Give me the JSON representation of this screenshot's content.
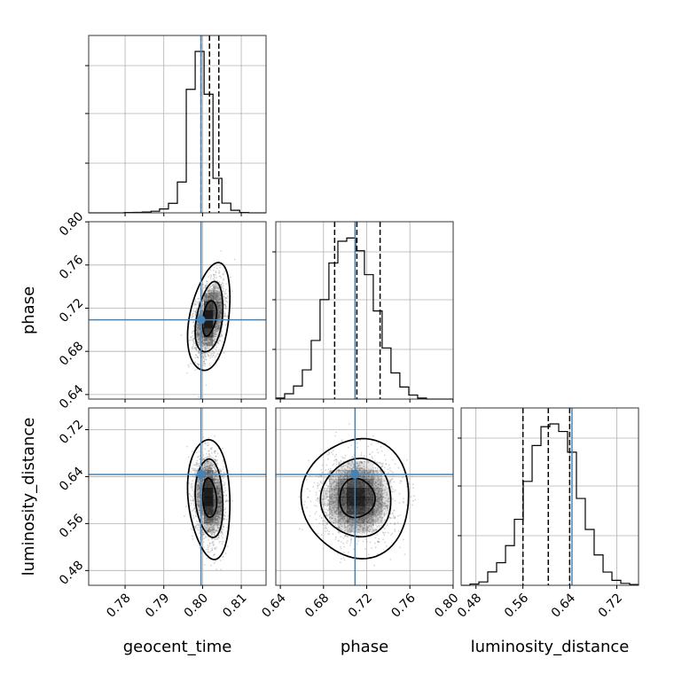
{
  "chart_data": {
    "type": "corner",
    "parameters": [
      "geocent_time",
      "phase",
      "luminosity_distance"
    ],
    "axis_labels": {
      "x": [
        "geocent_time",
        "phase",
        "luminosity_distance"
      ],
      "y": [
        "phase",
        "luminosity_distance"
      ]
    },
    "ranges": {
      "geocent_time": [
        0.7706,
        0.8164
      ],
      "phase": [
        0.6358,
        0.8001
      ],
      "luminosity_distance": [
        0.4548,
        0.757
      ]
    },
    "ticks": {
      "geocent_time": [
        0.78,
        0.79,
        0.8,
        0.81
      ],
      "phase": [
        0.64,
        0.68,
        0.72,
        0.76,
        0.8
      ],
      "luminosity_distance_x": [
        0.48,
        0.56,
        0.64,
        0.72
      ],
      "luminosity_distance_y": [
        0.48,
        0.56,
        0.64,
        0.72
      ]
    },
    "tick_labels": {
      "geocent_time": [
        "0.78",
        "0.79",
        "0.80",
        "0.81"
      ],
      "phase": [
        "0.64",
        "0.68",
        "0.72",
        "0.76",
        "0.80"
      ],
      "luminosity_distance_x": [
        "0.48",
        "0.56",
        "0.64",
        "0.72"
      ],
      "luminosity_distance_y": [
        "0.48",
        "0.56",
        "0.64",
        "0.72"
      ]
    },
    "truths": {
      "geocent_time": 0.7996,
      "phase": 0.7092,
      "luminosity_distance": 0.6436
    },
    "truth_color": "#4682b4",
    "quantiles": {
      "geocent_time": [
        0.7996,
        0.8018,
        0.8042
      ],
      "phase": [
        0.6903,
        0.7109,
        0.7324
      ],
      "luminosity_distance": [
        0.5601,
        0.6033,
        0.6397
      ]
    },
    "marginals": {
      "geocent_time": {
        "edges": [
          0.7706,
          0.7729,
          0.7752,
          0.7775,
          0.7798,
          0.7821,
          0.7844,
          0.7867,
          0.7889,
          0.7912,
          0.7935,
          0.7958,
          0.7981,
          0.8004,
          0.8027,
          0.805,
          0.8073,
          0.8096,
          0.8119,
          0.8141,
          0.8164
        ],
        "counts": [
          0,
          0,
          0,
          0,
          0.002,
          0.003,
          0.005,
          0.01,
          0.024,
          0.059,
          0.191,
          0.765,
          1.0,
          0.735,
          0.214,
          0.06,
          0.016,
          0.002,
          0,
          0
        ]
      },
      "phase": {
        "edges": [
          0.6358,
          0.644,
          0.6522,
          0.6604,
          0.6686,
          0.6768,
          0.685,
          0.6933,
          0.7015,
          0.7097,
          0.7179,
          0.7261,
          0.7343,
          0.7425,
          0.7507,
          0.759,
          0.7672,
          0.7754,
          0.7836,
          0.7918,
          0.8001
        ],
        "counts": [
          0.006,
          0.033,
          0.081,
          0.181,
          0.363,
          0.616,
          0.843,
          0.978,
          0.998,
          0.919,
          0.771,
          0.546,
          0.317,
          0.162,
          0.075,
          0.025,
          0.006,
          0,
          0,
          0
        ]
      },
      "luminosity_distance": {
        "edges": [
          0.4548,
          0.4699,
          0.485,
          0.5001,
          0.5152,
          0.5304,
          0.5455,
          0.5606,
          0.5757,
          0.5908,
          0.6059,
          0.621,
          0.6361,
          0.6512,
          0.6663,
          0.6814,
          0.6966,
          0.7117,
          0.7268,
          0.7419,
          0.757
        ],
        "counts": [
          0,
          0.008,
          0.021,
          0.083,
          0.14,
          0.246,
          0.409,
          0.644,
          0.866,
          0.983,
          1.0,
          0.953,
          0.825,
          0.538,
          0.346,
          0.188,
          0.082,
          0.031,
          0.012,
          0.005
        ]
      }
    },
    "joint": [
      {
        "x": "geocent_time",
        "y": "phase",
        "mean": [
          0.8018,
          0.7109
        ],
        "sd": [
          0.0018,
          0.0164
        ],
        "corr": 0.35,
        "levels": [
          0.39,
          0.86,
          0.99
        ],
        "density_color": "#000000",
        "scatter_color": "#888888"
      },
      {
        "x": "geocent_time",
        "y": "luminosity_distance",
        "mean": [
          0.8018,
          0.6033
        ],
        "sd": [
          0.0018,
          0.0335
        ],
        "corr": -0.15,
        "levels": [
          0.39,
          0.86,
          0.99
        ],
        "density_color": "#000000",
        "scatter_color": "#888888"
      },
      {
        "x": "phase",
        "y": "luminosity_distance",
        "mean": [
          0.7109,
          0.6033
        ],
        "sd": [
          0.0164,
          0.0335
        ],
        "corr": 0.0,
        "levels": [
          0.39,
          0.86,
          0.99
        ],
        "density_color": "#000000",
        "scatter_color": "#888888"
      }
    ]
  }
}
